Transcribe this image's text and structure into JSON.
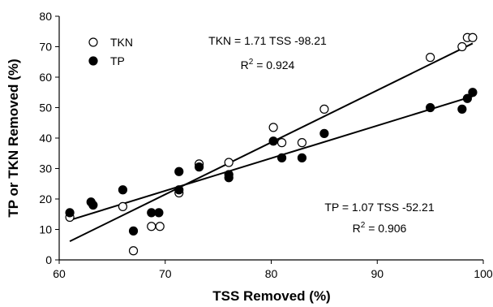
{
  "chart_data": {
    "type": "scatter",
    "title": "",
    "xlabel": "TSS Removed (%)",
    "ylabel": "TP or TKN Removed (%)",
    "xlim": [
      60,
      100
    ],
    "ylim": [
      0,
      80
    ],
    "x_ticks": [
      "60",
      "70",
      "80",
      "90",
      "100"
    ],
    "y_ticks": [
      "0",
      "10",
      "20",
      "30",
      "40",
      "50",
      "60",
      "70",
      "80"
    ],
    "grid": false,
    "legend": {
      "position": "top-left",
      "entries": [
        "TKN",
        "TP"
      ]
    },
    "series": [
      {
        "name": "TKN",
        "marker": "open-circle",
        "points": [
          [
            61.0,
            14
          ],
          [
            66.0,
            17.5
          ],
          [
            67.0,
            3
          ],
          [
            68.7,
            11
          ],
          [
            69.5,
            11
          ],
          [
            71.3,
            22
          ],
          [
            73.2,
            31.5
          ],
          [
            76.0,
            32
          ],
          [
            80.2,
            43.5
          ],
          [
            81.0,
            38.5
          ],
          [
            82.9,
            38.5
          ],
          [
            85.0,
            49.5
          ],
          [
            95.0,
            66.5
          ],
          [
            98.0,
            70
          ],
          [
            98.5,
            73
          ],
          [
            99.0,
            73
          ]
        ],
        "fit": {
          "slope": 1.71,
          "intercept": -98.21,
          "x_range": [
            61,
            99
          ]
        }
      },
      {
        "name": "TP",
        "marker": "filled-circle",
        "points": [
          [
            61.0,
            15.5
          ],
          [
            63.0,
            19
          ],
          [
            63.2,
            18
          ],
          [
            66.0,
            23
          ],
          [
            67.0,
            9.5
          ],
          [
            68.7,
            15.5
          ],
          [
            69.4,
            15.5
          ],
          [
            71.3,
            29
          ],
          [
            71.3,
            23
          ],
          [
            73.2,
            30.5
          ],
          [
            76.0,
            28
          ],
          [
            76.0,
            27
          ],
          [
            80.2,
            39
          ],
          [
            81.0,
            33.5
          ],
          [
            82.9,
            33.5
          ],
          [
            85.0,
            41.5
          ],
          [
            95.0,
            50
          ],
          [
            98.0,
            49.5
          ],
          [
            98.5,
            53
          ],
          [
            99.0,
            55
          ]
        ],
        "fit": {
          "slope": 1.07,
          "intercept": -52.21,
          "x_range": [
            61,
            99
          ]
        }
      }
    ],
    "annotations": {
      "tkn_equation": "TKN = 1.71 TSS -98.21",
      "tkn_r2_prefix": "R",
      "tkn_r2_sup": "2",
      "tkn_r2_value": " = 0.924",
      "tp_equation": "TP = 1.07 TSS -52.21",
      "tp_r2_prefix": "R",
      "tp_r2_sup": "2",
      "tp_r2_value": " = 0.906"
    }
  }
}
